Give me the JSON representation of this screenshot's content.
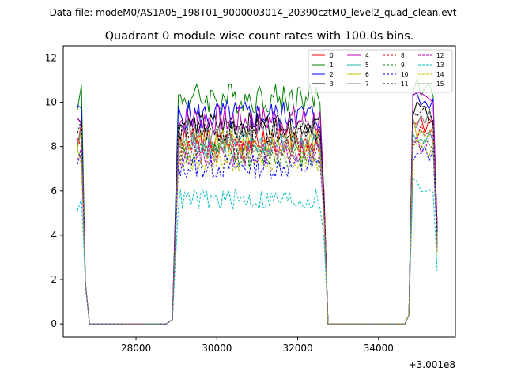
{
  "suptitle": "Data file: modeM0/AS1A05_198T01_9000003014_20390cztM0_level2_quad_clean.evt",
  "chart_data": {
    "type": "line",
    "title": "Quadrant 0 module wise count rates with 100.0s bins.",
    "xlabel": "",
    "ylabel": "",
    "offset_text": "+3.001e8",
    "xlim": [
      26200,
      35900
    ],
    "ylim": [
      -0.6,
      12.55
    ],
    "x_ticks": [
      28000,
      30000,
      32000,
      34000
    ],
    "x_tick_labels": [
      "28000",
      "30000",
      "32000",
      "34000"
    ],
    "y_ticks": [
      0,
      2,
      4,
      6,
      8,
      10,
      12
    ],
    "y_tick_labels": [
      "0",
      "2",
      "4",
      "6",
      "8",
      "10",
      "12"
    ],
    "grid": false,
    "legend_position": "top-right",
    "gti": [
      {
        "start": 26550,
        "end": 26850,
        "plateau_start": 26650
      },
      {
        "start": 28950,
        "end": 32750,
        "plateau_start": 29050
      },
      {
        "start": 34750,
        "end": 35450,
        "plateau_start": 34850
      }
    ],
    "bin_width": 100,
    "series": [
      {
        "name": "0",
        "color": "#ff0000",
        "dashed": false,
        "level": 8.3,
        "amplitude": 0.4,
        "end_value": 4.5
      },
      {
        "name": "1",
        "color": "#008000",
        "dashed": false,
        "level": 10.2,
        "amplitude": 0.5,
        "end_value": 4.0
      },
      {
        "name": "2",
        "color": "#0000ff",
        "dashed": false,
        "level": 9.4,
        "amplitude": 0.5,
        "end_value": 4.2
      },
      {
        "name": "3",
        "color": "#000000",
        "dashed": false,
        "level": 9.0,
        "amplitude": 0.4,
        "end_value": 4.3
      },
      {
        "name": "4",
        "color": "#bf00bf",
        "dashed": false,
        "level": 9.2,
        "amplitude": 0.5,
        "end_value": 4.4
      },
      {
        "name": "5",
        "color": "#20b2aa",
        "dashed": false,
        "level": 8.1,
        "amplitude": 0.4,
        "end_value": 3.5
      },
      {
        "name": "6",
        "color": "#bfbf00",
        "dashed": false,
        "level": 8.2,
        "amplitude": 0.4,
        "end_value": 3.8
      },
      {
        "name": "7",
        "color": "#808080",
        "dashed": false,
        "level": 8.6,
        "amplitude": 0.4,
        "end_value": 3.9
      },
      {
        "name": "8",
        "color": "#ff0000",
        "dashed": true,
        "level": 7.9,
        "amplitude": 0.4,
        "end_value": 3.7
      },
      {
        "name": "9",
        "color": "#008000",
        "dashed": true,
        "level": 7.6,
        "amplitude": 0.4,
        "end_value": 3.6
      },
      {
        "name": "10",
        "color": "#0000ff",
        "dashed": true,
        "level": 7.1,
        "amplitude": 0.4,
        "end_value": 3.3
      },
      {
        "name": "11",
        "color": "#000000",
        "dashed": true,
        "level": 8.7,
        "amplitude": 0.4,
        "end_value": 4.1
      },
      {
        "name": "12",
        "color": "#bf00bf",
        "dashed": true,
        "level": 7.7,
        "amplitude": 0.4,
        "end_value": 3.4
      },
      {
        "name": "13",
        "color": "#00bfbf",
        "dashed": true,
        "level": 5.6,
        "amplitude": 0.35,
        "end_value": 2.4
      },
      {
        "name": "14",
        "color": "#bfbf00",
        "dashed": true,
        "level": 7.4,
        "amplitude": 0.4,
        "end_value": 3.2
      },
      {
        "name": "15",
        "color": "#808080",
        "dashed": true,
        "level": 7.8,
        "amplitude": 0.4,
        "end_value": 3.5
      }
    ]
  }
}
